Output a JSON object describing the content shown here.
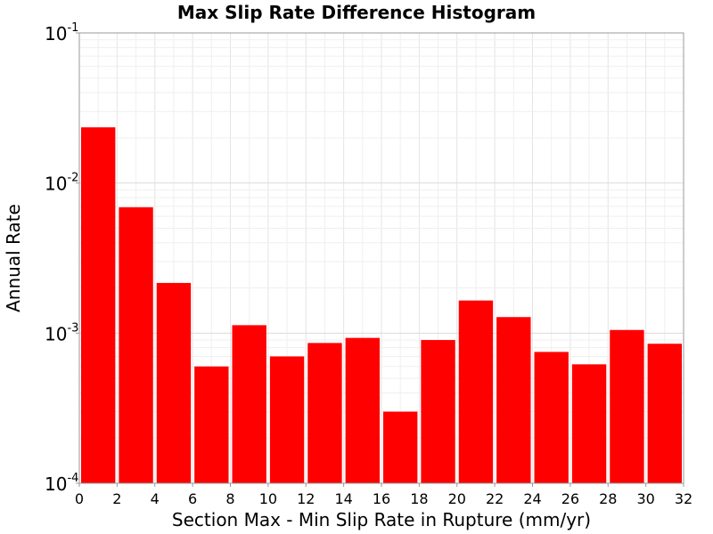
{
  "chart_data": {
    "type": "bar",
    "title": "Max Slip Rate Difference Histogram",
    "xlabel": "Section Max - Min Slip Rate in Rupture (mm/yr)",
    "ylabel": "Annual Rate",
    "xlim": [
      0,
      32
    ],
    "ylim": [
      0.0001,
      0.1
    ],
    "yscale": "log",
    "grid": true,
    "bar_color": "#ff0000",
    "bin_width": 2,
    "x": [
      1,
      3,
      5,
      7,
      9,
      11,
      13,
      15,
      17,
      19,
      21,
      23,
      25,
      27,
      29,
      31
    ],
    "values": [
      0.0235,
      0.0069,
      0.00216,
      0.0006,
      0.00113,
      0.0007,
      0.00086,
      0.00093,
      0.0003,
      0.0009,
      0.00165,
      0.00128,
      0.00075,
      0.00062,
      0.00105,
      0.00085
    ],
    "x_ticks": [
      "0",
      "2",
      "4",
      "6",
      "8",
      "10",
      "12",
      "14",
      "16",
      "18",
      "20",
      "22",
      "24",
      "26",
      "28",
      "30",
      "32"
    ],
    "y_ticks": [
      {
        "base": "10",
        "exp": "-1",
        "value": 0.1
      },
      {
        "base": "10",
        "exp": "-2",
        "value": 0.01
      },
      {
        "base": "10",
        "exp": "-3",
        "value": 0.001
      },
      {
        "base": "10",
        "exp": "-4",
        "value": 0.0001
      }
    ]
  }
}
